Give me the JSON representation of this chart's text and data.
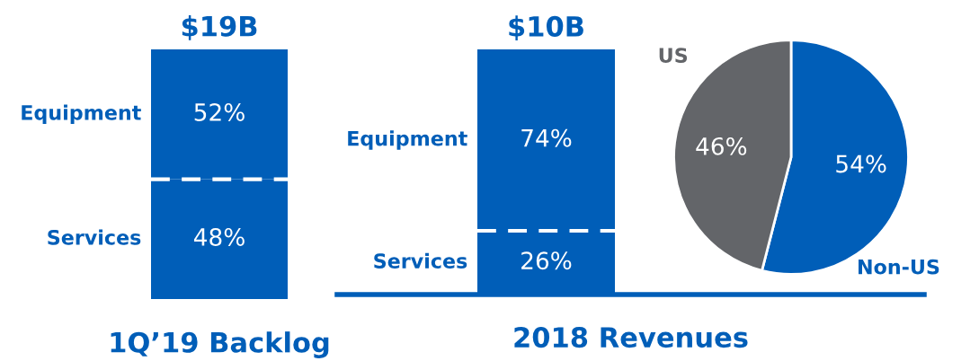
{
  "chart_data": [
    {
      "type": "bar",
      "stacked": true,
      "title": "1Q’19 Backlog",
      "categories": [
        null
      ],
      "annotations": [
        "$19B"
      ],
      "series": [
        {
          "name": "Services",
          "color": "#005eb8",
          "values": [
            48
          ],
          "value_labels": [
            "48%"
          ]
        },
        {
          "name": "Equipment",
          "color": "#005eb8",
          "values": [
            52
          ],
          "value_labels": [
            "52%"
          ]
        }
      ]
    },
    {
      "type": "bar",
      "stacked": true,
      "title": "2018 Revenues",
      "categories": [
        null
      ],
      "annotations": [
        "$10B"
      ],
      "series": [
        {
          "name": "Services",
          "color": "#005eb8",
          "values": [
            26
          ],
          "value_labels": [
            "26%"
          ]
        },
        {
          "name": "Equipment",
          "color": "#005eb8",
          "values": [
            74
          ],
          "value_labels": [
            "74%"
          ]
        }
      ]
    },
    {
      "type": "pie",
      "categories": [
        "Non-US",
        "US"
      ],
      "values": [
        54,
        46
      ],
      "colors": [
        "#005eb8",
        "#636569"
      ],
      "value_labels": [
        "54%",
        "46%"
      ]
    }
  ]
}
